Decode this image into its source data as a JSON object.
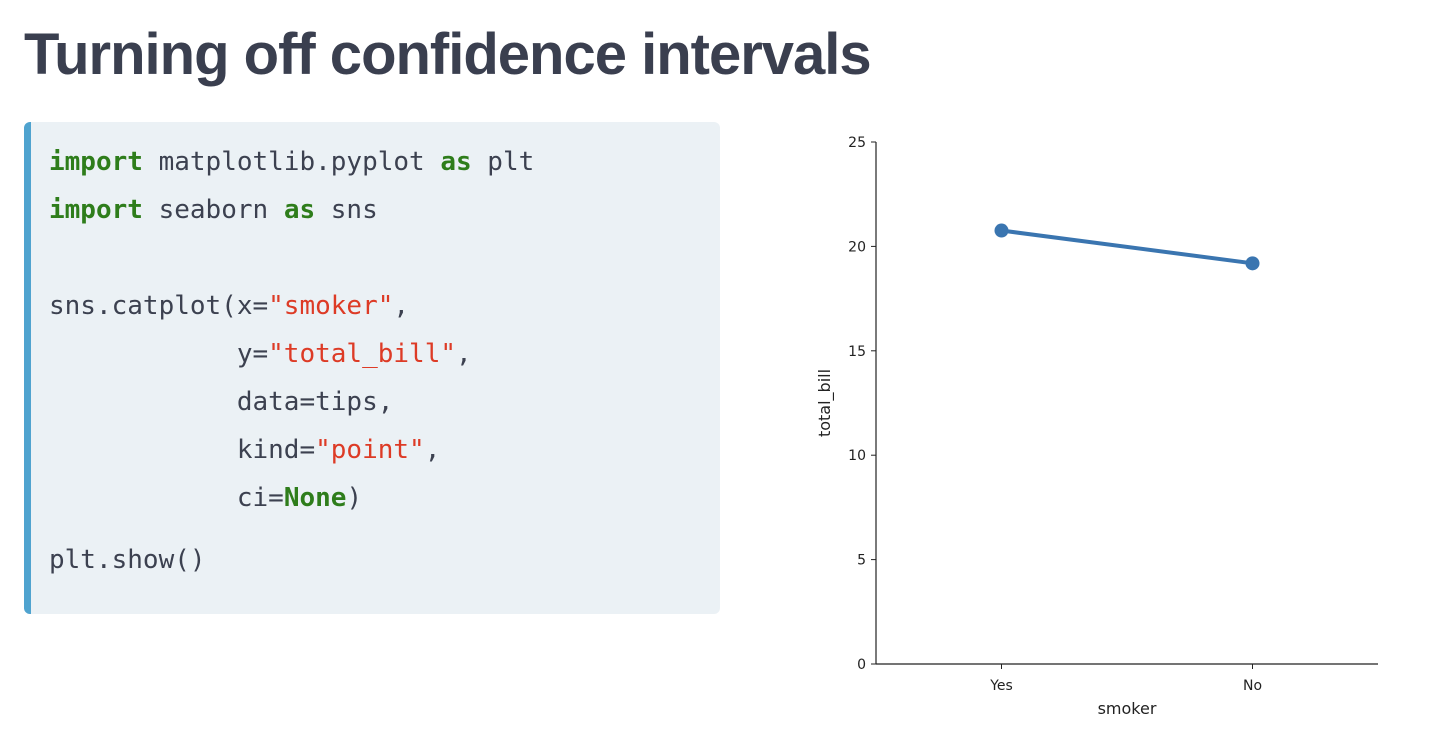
{
  "title": "Turning off confidence intervals",
  "code": {
    "l1": {
      "kw1": "import",
      "mid": " matplotlib.pyplot ",
      "kw2": "as",
      "tail": " plt"
    },
    "l2": {
      "kw1": "import",
      "mid": " seaborn ",
      "kw2": "as",
      "tail": " sns"
    },
    "l3": {
      "a": "sns.catplot(x=",
      "s": "\"smoker\"",
      "b": ","
    },
    "l4": {
      "a": "            y=",
      "s": "\"total_bill\"",
      "b": ","
    },
    "l5": {
      "a": "            data=tips,"
    },
    "l6": {
      "a": "            kind=",
      "s": "\"point\"",
      "b": ","
    },
    "l7": {
      "a": "            ci=",
      "kw": "None",
      "b": ")"
    },
    "l8": {
      "a": "plt.show()"
    }
  },
  "colors": {
    "keyword": "#2e7d1b",
    "string": "#dd3b26",
    "code_bg": "#ebf1f5",
    "code_border": "#4fa3cf",
    "series": "#3a75b0"
  },
  "chart_data": {
    "type": "line",
    "categories": [
      "Yes",
      "No"
    ],
    "values": [
      20.76,
      19.19
    ],
    "xlabel": "smoker",
    "ylabel": "total_bill",
    "ylim": [
      0,
      25
    ],
    "yticks": [
      0,
      5,
      10,
      15,
      20,
      25
    ],
    "grid": false,
    "markers": true
  }
}
